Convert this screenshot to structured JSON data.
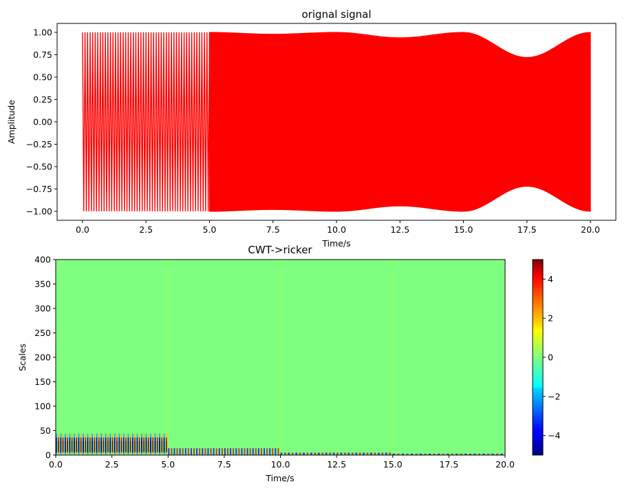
{
  "chart_data": [
    {
      "type": "line",
      "title": "orignal signal",
      "xlabel": "Time/s",
      "ylabel": "Amplitude",
      "xlim": [
        -1,
        21
      ],
      "ylim": [
        -1.1,
        1.1
      ],
      "xticks": [
        0.0,
        2.5,
        5.0,
        7.5,
        10.0,
        12.5,
        15.0,
        17.5,
        20.0
      ],
      "xtick_labels": [
        "0.0",
        "2.5",
        "5.0",
        "7.5",
        "10.0",
        "12.5",
        "15.0",
        "17.5",
        "20.0"
      ],
      "yticks": [
        -1.0,
        -0.75,
        -0.5,
        -0.25,
        0.0,
        0.25,
        0.5,
        0.75,
        1.0
      ],
      "ytick_labels": [
        "−1.00",
        "−0.75",
        "−0.50",
        "−0.25",
        "0.00",
        "0.25",
        "0.50",
        "0.75",
        "1.00"
      ],
      "color": "#ff0000",
      "segments": [
        {
          "t0": 0,
          "t1": 5,
          "cycles_per_second": 10,
          "style": "distinct oscillations"
        },
        {
          "t0": 5,
          "t1": 20,
          "style": "dense fill"
        }
      ],
      "envelope": {
        "t": [
          5.0,
          7.5,
          10.0,
          12.5,
          15.0,
          17.5,
          20.0
        ],
        "upper": [
          1.0,
          0.98,
          1.0,
          0.94,
          1.0,
          0.72,
          1.0
        ],
        "lower": [
          -1.0,
          -0.98,
          -1.0,
          -0.94,
          -1.0,
          -0.72,
          -1.0
        ]
      }
    },
    {
      "type": "heatmap",
      "title": "CWT->ricker",
      "xlabel": "Time/s",
      "ylabel": "Scales",
      "xlim": [
        0,
        20
      ],
      "ylim": [
        0,
        400
      ],
      "xticks": [
        0.0,
        2.5,
        5.0,
        7.5,
        10.0,
        12.5,
        15.0,
        17.5,
        20.0
      ],
      "xtick_labels": [
        "0.0",
        "2.5",
        "5.0",
        "7.5",
        "10.0",
        "12.5",
        "15.0",
        "17.5",
        "20.0"
      ],
      "yticks": [
        0,
        50,
        100,
        150,
        200,
        250,
        300,
        350,
        400
      ],
      "ytick_labels": [
        "0",
        "50",
        "100",
        "150",
        "200",
        "250",
        "300",
        "350",
        "400"
      ],
      "colormap": "jet",
      "background_value": 0,
      "background_color": "#7fff7f",
      "bands": [
        {
          "t0": 0,
          "t1": 5,
          "scale_max": 48,
          "stripes": 50
        },
        {
          "t0": 5,
          "t1": 10,
          "scale_max": 14,
          "stripes": 40
        },
        {
          "t0": 10,
          "t1": 15,
          "scale_max": 5,
          "stripes": 30
        },
        {
          "t0": 15,
          "t1": 20,
          "scale_max": 3,
          "stripes": 25
        }
      ],
      "colorbar": {
        "range": [
          -5,
          5
        ],
        "ticks": [
          -4,
          -2,
          0,
          2,
          4
        ],
        "tick_labels": [
          "−4",
          "−2",
          "0",
          "2",
          "4"
        ]
      }
    }
  ]
}
